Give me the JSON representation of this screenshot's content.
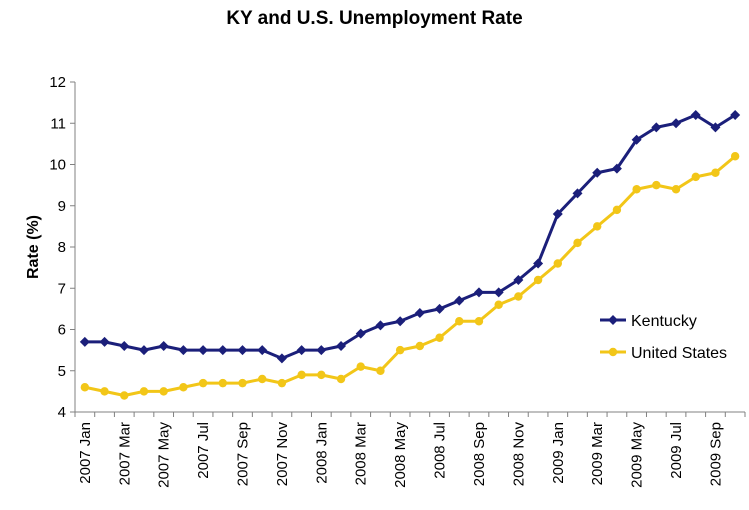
{
  "chart_data": {
    "type": "line",
    "title": "KY and U.S. Unemployment Rate",
    "xlabel": "",
    "ylabel": "Rate (%)",
    "ylim": [
      4,
      12
    ],
    "yticks": [
      4,
      5,
      6,
      7,
      8,
      9,
      10,
      11,
      12
    ],
    "grid": false,
    "legend_position": "right",
    "x": [
      "2007 Jan",
      "2007 Feb",
      "2007 Mar",
      "2007 Apr",
      "2007 May",
      "2007 Jun",
      "2007 Jul",
      "2007 Aug",
      "2007 Sep",
      "2007 Oct",
      "2007 Nov",
      "2007 Dec",
      "2008 Jan",
      "2008 Feb",
      "2008 Mar",
      "2008 Apr",
      "2008 May",
      "2008 Jun",
      "2008 Jul",
      "2008 Aug",
      "2008 Sep",
      "2008 Oct",
      "2008 Nov",
      "2008 Dec",
      "2009 Jan",
      "2009 Feb",
      "2009 Mar",
      "2009 Apr",
      "2009 May",
      "2009 Jun",
      "2009 Jul",
      "2009 Aug",
      "2009 Sep",
      "2009 Oct"
    ],
    "xtick_labels": [
      "2007 Jan",
      "2007 Mar",
      "2007 May",
      "2007 Jul",
      "2007 Sep",
      "2007 Nov",
      "2008 Jan",
      "2008 Mar",
      "2008 May",
      "2008 Jul",
      "2008 Sep",
      "2008 Nov",
      "2009 Jan",
      "2009 Mar",
      "2009 May",
      "2009 Jul",
      "2009 Sep"
    ],
    "series": [
      {
        "name": "Kentucky",
        "color": "#1b1f7a",
        "marker": "diamond",
        "values": [
          5.7,
          5.7,
          5.6,
          5.5,
          5.6,
          5.5,
          5.5,
          5.5,
          5.5,
          5.5,
          5.3,
          5.5,
          5.5,
          5.6,
          5.9,
          6.1,
          6.2,
          6.4,
          6.5,
          6.7,
          6.9,
          6.9,
          7.2,
          7.6,
          8.8,
          9.3,
          9.8,
          9.9,
          10.6,
          10.9,
          11.0,
          11.2,
          10.9,
          11.2
        ]
      },
      {
        "name": "United States",
        "color": "#f2c618",
        "marker": "circle",
        "values": [
          4.6,
          4.5,
          4.4,
          4.5,
          4.5,
          4.6,
          4.7,
          4.7,
          4.7,
          4.8,
          4.7,
          4.9,
          4.9,
          4.8,
          5.1,
          5.0,
          5.5,
          5.6,
          5.8,
          6.2,
          6.2,
          6.6,
          6.8,
          7.2,
          7.6,
          8.1,
          8.5,
          8.9,
          9.4,
          9.5,
          9.4,
          9.7,
          9.8,
          10.2
        ]
      }
    ]
  }
}
